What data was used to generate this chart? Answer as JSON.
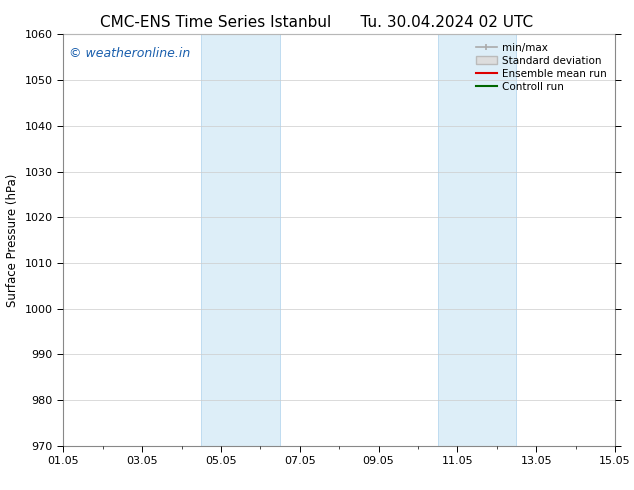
{
  "title_left": "CMC-ENS Time Series Istanbul",
  "title_right": "Tu. 30.04.2024 02 UTC",
  "ylabel": "Surface Pressure (hPa)",
  "ylim": [
    970,
    1060
  ],
  "yticks": [
    970,
    980,
    990,
    1000,
    1010,
    1020,
    1030,
    1040,
    1050,
    1060
  ],
  "xlim": [
    0,
    14
  ],
  "xtick_labels": [
    "01.05",
    "03.05",
    "05.05",
    "07.05",
    "09.05",
    "11.05",
    "13.05",
    "15.05"
  ],
  "xtick_positions": [
    0,
    2,
    4,
    6,
    8,
    10,
    12,
    14
  ],
  "shaded_regions": [
    {
      "start": 3.5,
      "end": 5.5
    },
    {
      "start": 9.5,
      "end": 11.5
    }
  ],
  "shaded_color": "#ddeef8",
  "shaded_edge_color": "#b8d8ef",
  "watermark_text": "© weatheronline.in",
  "watermark_color": "#1a5fad",
  "watermark_fontsize": 9,
  "legend_items": [
    {
      "label": "min/max",
      "color": "#aaaaaa",
      "lw": 1.2
    },
    {
      "label": "Standard deviation",
      "color": "#cccccc",
      "lw": 5
    },
    {
      "label": "Ensemble mean run",
      "color": "#dd0000",
      "lw": 1.5
    },
    {
      "label": "Controll run",
      "color": "#006600",
      "lw": 1.5
    }
  ],
  "bg_color": "#ffffff",
  "grid_color": "#cccccc",
  "title_fontsize": 11,
  "ylabel_fontsize": 8.5,
  "tick_fontsize": 8,
  "legend_fontsize": 7.5
}
